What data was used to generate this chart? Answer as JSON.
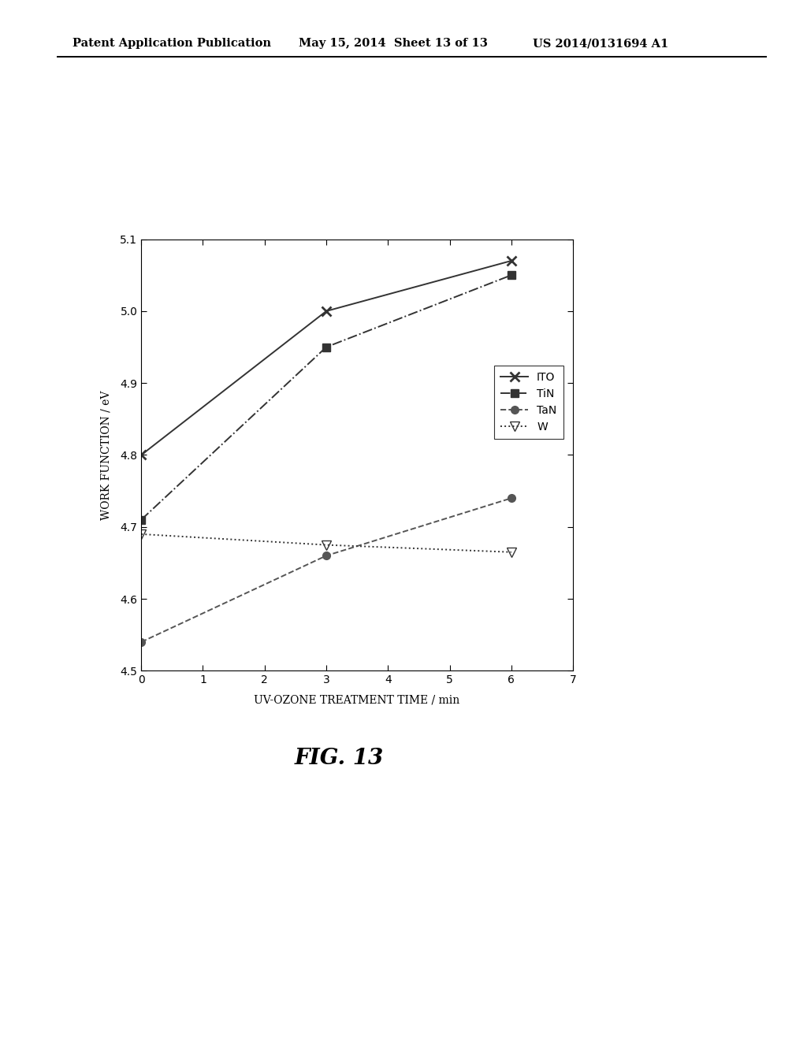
{
  "series": [
    {
      "label": "ITO",
      "x": [
        0,
        3,
        6
      ],
      "y": [
        4.8,
        5.0,
        5.07
      ],
      "color": "#333333",
      "linestyle": "-",
      "marker": "x",
      "markersize": 8,
      "linewidth": 1.4,
      "markeredgewidth": 2.0
    },
    {
      "label": "TiN",
      "x": [
        0,
        3,
        6
      ],
      "y": [
        4.71,
        4.95,
        5.05
      ],
      "color": "#333333",
      "linestyle": "-.",
      "marker": "s",
      "markersize": 7,
      "linewidth": 1.4,
      "markeredgewidth": 1.0
    },
    {
      "label": "TaN",
      "x": [
        0,
        3,
        6
      ],
      "y": [
        4.54,
        4.66,
        4.74
      ],
      "color": "#555555",
      "linestyle": "--",
      "marker": "o",
      "markersize": 7,
      "linewidth": 1.4,
      "markeredgewidth": 1.0
    },
    {
      "label": "W",
      "x": [
        0,
        3,
        6
      ],
      "y": [
        4.69,
        4.675,
        4.665
      ],
      "color": "#333333",
      "linestyle": ":",
      "marker": "v",
      "markersize": 8,
      "linewidth": 1.4,
      "markeredgewidth": 1.0
    }
  ],
  "xlabel": "UV-OZONE TREATMENT TIME / min",
  "ylabel": "WORK FUNCTION / eV",
  "xlim": [
    0,
    7
  ],
  "ylim": [
    4.5,
    5.1
  ],
  "xticks": [
    0,
    1,
    2,
    3,
    4,
    5,
    6,
    7
  ],
  "yticks": [
    4.5,
    4.6,
    4.7,
    4.8,
    4.9,
    5.0,
    5.1
  ],
  "header_left": "Patent Application Publication",
  "header_mid": "May 15, 2014  Sheet 13 of 13",
  "header_right": "US 2014/0131694 A1",
  "fig_label": "FIG. 13",
  "background_color": "#ffffff",
  "plot_bg": "#ffffff"
}
